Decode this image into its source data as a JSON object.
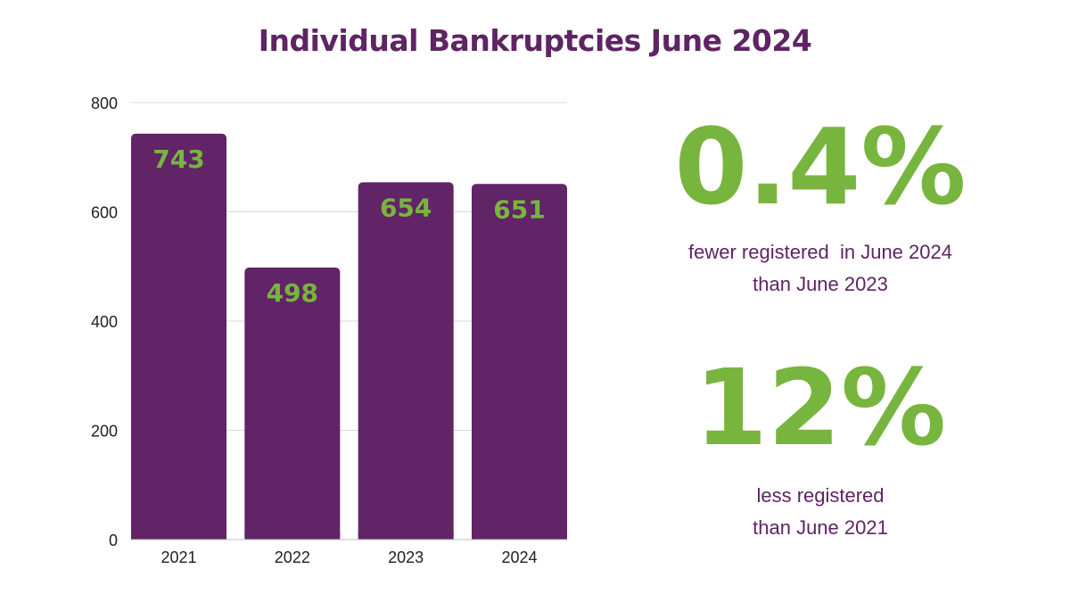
{
  "chart_data": {
    "type": "bar",
    "title": "Individual Bankruptcies June 2024",
    "categories": [
      "2021",
      "2022",
      "2023",
      "2024"
    ],
    "values": [
      743,
      498,
      654,
      651
    ],
    "data_labels": [
      "743",
      "498",
      "654",
      "651"
    ],
    "yticks": [
      "0",
      "200",
      "400",
      "600",
      "800"
    ],
    "ylim": [
      0,
      800
    ],
    "grid": true,
    "xlabel": "",
    "ylabel": "",
    "bar_color": "#612466",
    "label_color": "#78b53f"
  },
  "stats": [
    {
      "value": "0.4%",
      "caption_lines": [
        "fewer registered  in June 2024",
        "than June 2023"
      ]
    },
    {
      "value": "12%",
      "caption_lines": [
        "less registered",
        "than June 2021"
      ]
    }
  ],
  "colors": {
    "title": "#5e2463",
    "accent": "#78b53f",
    "bar": "#612466",
    "grid": "#d9d9d9"
  }
}
